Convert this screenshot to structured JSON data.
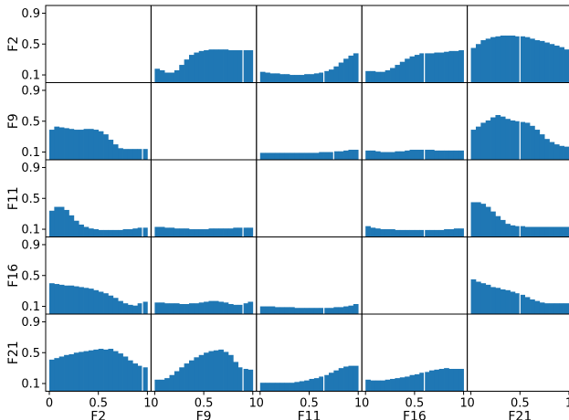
{
  "chart_data": {
    "type": "bar",
    "features": [
      "F2",
      "F9",
      "F11",
      "F16",
      "F21"
    ],
    "x_range": [
      0,
      1
    ],
    "x_ticks": [
      0,
      0.5,
      1
    ],
    "x_tick_labels": [
      "0",
      "0.5",
      "1"
    ],
    "y_range": [
      0,
      1
    ],
    "y_ticks": [
      0.1,
      0.5,
      0.9
    ],
    "y_tick_labels": [
      "0.1",
      "0.5",
      "0.9"
    ],
    "bar_color": "#1f77b4",
    "grid": false,
    "bins": 20,
    "panels": [
      {
        "row": "F2",
        "col": "F9",
        "values": [
          0.18,
          0.16,
          0.13,
          0.13,
          0.16,
          0.23,
          0.3,
          0.36,
          0.39,
          0.41,
          0.42,
          0.43,
          0.43,
          0.43,
          0.43,
          0.42,
          0.42,
          0.42,
          0.42,
          0.42
        ],
        "split": 0.9
      },
      {
        "row": "F2",
        "col": "F11",
        "values": [
          0.14,
          0.13,
          0.12,
          0.12,
          0.11,
          0.11,
          0.1,
          0.1,
          0.1,
          0.11,
          0.11,
          0.12,
          0.13,
          0.15,
          0.17,
          0.21,
          0.26,
          0.31,
          0.35,
          0.38
        ],
        "split": 0.65
      },
      {
        "row": "F2",
        "col": "F16",
        "values": [
          0.15,
          0.15,
          0.14,
          0.14,
          0.16,
          0.19,
          0.23,
          0.27,
          0.31,
          0.34,
          0.36,
          0.38,
          0.38,
          0.38,
          0.39,
          0.39,
          0.4,
          0.41,
          0.41,
          0.42
        ],
        "split": 0.6
      },
      {
        "row": "F2",
        "col": "F21",
        "values": [
          0.45,
          0.5,
          0.55,
          0.57,
          0.59,
          0.6,
          0.61,
          0.61,
          0.61,
          0.6,
          0.6,
          0.59,
          0.57,
          0.55,
          0.54,
          0.52,
          0.5,
          0.48,
          0.46,
          0.43
        ],
        "split": 0.5
      },
      {
        "row": "F9",
        "col": "F2",
        "values": [
          0.39,
          0.43,
          0.42,
          0.41,
          0.4,
          0.39,
          0.39,
          0.4,
          0.4,
          0.39,
          0.37,
          0.33,
          0.26,
          0.2,
          0.15,
          0.14,
          0.14,
          0.14,
          0.14,
          0.14
        ],
        "split": 0.95
      },
      {
        "row": "F9",
        "col": "F11",
        "values": [
          0.09,
          0.09,
          0.09,
          0.09,
          0.09,
          0.09,
          0.09,
          0.09,
          0.09,
          0.09,
          0.09,
          0.09,
          0.1,
          0.1,
          0.1,
          0.11,
          0.11,
          0.12,
          0.13,
          0.13
        ],
        "split": 0.75
      },
      {
        "row": "F9",
        "col": "F16",
        "values": [
          0.12,
          0.12,
          0.11,
          0.1,
          0.1,
          0.1,
          0.11,
          0.11,
          0.12,
          0.13,
          0.13,
          0.13,
          0.13,
          0.13,
          0.12,
          0.12,
          0.12,
          0.12,
          0.12,
          0.12
        ],
        "split": 0.6
      },
      {
        "row": "F9",
        "col": "F21",
        "values": [
          0.39,
          0.43,
          0.48,
          0.51,
          0.55,
          0.58,
          0.56,
          0.53,
          0.51,
          0.5,
          0.49,
          0.48,
          0.44,
          0.39,
          0.33,
          0.27,
          0.23,
          0.2,
          0.18,
          0.17
        ],
        "split": 0.5
      },
      {
        "row": "F11",
        "col": "F2",
        "values": [
          0.34,
          0.39,
          0.39,
          0.35,
          0.28,
          0.21,
          0.16,
          0.13,
          0.11,
          0.1,
          0.09,
          0.09,
          0.09,
          0.09,
          0.09,
          0.1,
          0.1,
          0.11,
          0.12,
          0.12
        ],
        "split": 0.95
      },
      {
        "row": "F11",
        "col": "F9",
        "values": [
          0.13,
          0.13,
          0.12,
          0.12,
          0.11,
          0.11,
          0.11,
          0.1,
          0.1,
          0.1,
          0.1,
          0.11,
          0.11,
          0.11,
          0.11,
          0.11,
          0.12,
          0.12,
          0.12,
          0.12
        ],
        "split": 0.9
      },
      {
        "row": "F11",
        "col": "F16",
        "values": [
          0.14,
          0.12,
          0.11,
          0.1,
          0.1,
          0.1,
          0.09,
          0.09,
          0.09,
          0.09,
          0.09,
          0.09,
          0.09,
          0.09,
          0.09,
          0.09,
          0.1,
          0.1,
          0.11,
          0.11
        ],
        "split": 0.6
      },
      {
        "row": "F11",
        "col": "F21",
        "values": [
          0.45,
          0.45,
          0.43,
          0.39,
          0.33,
          0.27,
          0.22,
          0.17,
          0.15,
          0.14,
          0.14,
          0.13,
          0.13,
          0.13,
          0.13,
          0.13,
          0.13,
          0.13,
          0.13,
          0.13
        ],
        "split": 0.5
      },
      {
        "row": "F16",
        "col": "F2",
        "values": [
          0.4,
          0.39,
          0.38,
          0.37,
          0.37,
          0.36,
          0.35,
          0.34,
          0.33,
          0.31,
          0.29,
          0.27,
          0.24,
          0.21,
          0.17,
          0.14,
          0.12,
          0.11,
          0.14,
          0.16
        ],
        "split": 0.95
      },
      {
        "row": "F16",
        "col": "F9",
        "values": [
          0.15,
          0.15,
          0.14,
          0.14,
          0.14,
          0.13,
          0.13,
          0.14,
          0.14,
          0.15,
          0.16,
          0.17,
          0.17,
          0.16,
          0.15,
          0.13,
          0.12,
          0.12,
          0.14,
          0.16
        ],
        "split": 0.9
      },
      {
        "row": "F16",
        "col": "F11",
        "values": [
          0.1,
          0.1,
          0.1,
          0.09,
          0.09,
          0.09,
          0.09,
          0.08,
          0.08,
          0.08,
          0.08,
          0.08,
          0.08,
          0.08,
          0.08,
          0.09,
          0.09,
          0.1,
          0.11,
          0.13
        ],
        "split": 0.65
      },
      {
        "row": "F16",
        "col": "F21",
        "values": [
          0.45,
          0.42,
          0.4,
          0.38,
          0.35,
          0.34,
          0.32,
          0.31,
          0.29,
          0.27,
          0.25,
          0.22,
          0.19,
          0.17,
          0.15,
          0.14,
          0.14,
          0.14,
          0.14,
          0.14
        ],
        "split": 0.5
      },
      {
        "row": "F21",
        "col": "F2",
        "values": [
          0.41,
          0.43,
          0.45,
          0.47,
          0.48,
          0.5,
          0.51,
          0.52,
          0.53,
          0.54,
          0.55,
          0.54,
          0.55,
          0.52,
          0.49,
          0.45,
          0.4,
          0.36,
          0.33,
          0.31
        ],
        "split": 0.95
      },
      {
        "row": "F21",
        "col": "F9",
        "values": [
          0.15,
          0.15,
          0.17,
          0.21,
          0.26,
          0.31,
          0.36,
          0.4,
          0.44,
          0.47,
          0.5,
          0.52,
          0.53,
          0.54,
          0.51,
          0.47,
          0.38,
          0.31,
          0.29,
          0.28
        ],
        "split": 0.9
      },
      {
        "row": "F21",
        "col": "F11",
        "values": [
          0.11,
          0.11,
          0.11,
          0.11,
          0.11,
          0.11,
          0.11,
          0.12,
          0.13,
          0.14,
          0.16,
          0.17,
          0.19,
          0.21,
          0.24,
          0.27,
          0.3,
          0.32,
          0.33,
          0.33
        ],
        "split": 0.65
      },
      {
        "row": "F21",
        "col": "F16",
        "values": [
          0.15,
          0.14,
          0.14,
          0.14,
          0.15,
          0.16,
          0.17,
          0.18,
          0.19,
          0.21,
          0.22,
          0.24,
          0.25,
          0.27,
          0.28,
          0.29,
          0.3,
          0.29,
          0.29,
          0.29
        ],
        "split": 0.6
      }
    ]
  }
}
